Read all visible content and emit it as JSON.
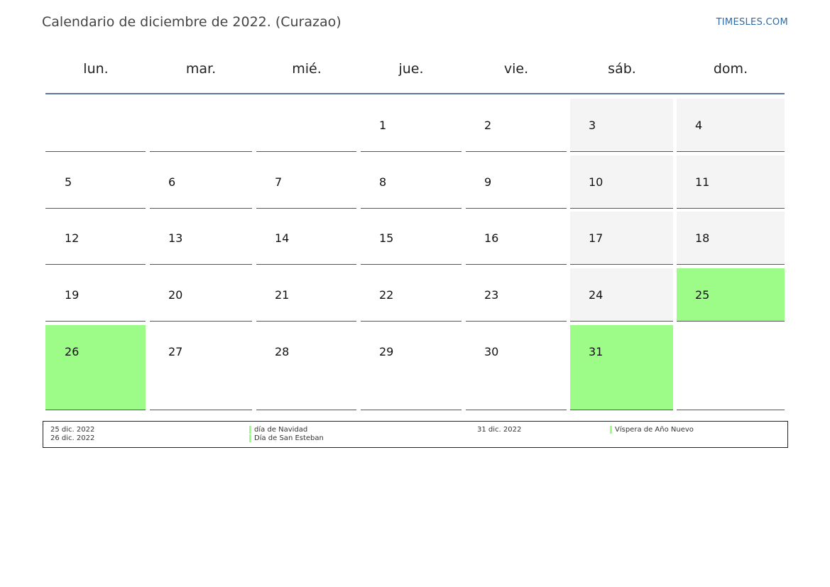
{
  "header": {
    "title": "Calendario de diciembre de 2022. (Curazao)",
    "site": "TIMESLES.COM"
  },
  "weekdays": [
    "lun.",
    "mar.",
    "mié.",
    "jue.",
    "vie.",
    "sáb.",
    "dom."
  ],
  "weeks": [
    [
      "",
      "",
      "",
      "1",
      "2",
      "3",
      "4"
    ],
    [
      "5",
      "6",
      "7",
      "8",
      "9",
      "10",
      "11"
    ],
    [
      "12",
      "13",
      "14",
      "15",
      "16",
      "17",
      "18"
    ],
    [
      "19",
      "20",
      "21",
      "22",
      "23",
      "24",
      "25"
    ],
    [
      "26",
      "27",
      "28",
      "29",
      "30",
      "31",
      ""
    ]
  ],
  "holiday_days": [
    "25",
    "26",
    "31"
  ],
  "colors": {
    "holiday": "#9dfc87",
    "weekend": "#f4f4f4",
    "header_line": "#5b7898",
    "site_link": "#2f6aa3"
  },
  "legend": {
    "left_dates": [
      "25 dic. 2022",
      "26 dic. 2022"
    ],
    "left_names": [
      "día de Navidad",
      "Día de San Esteban"
    ],
    "right_dates": [
      "31 dic. 2022"
    ],
    "right_names": [
      "Víspera de Año Nuevo"
    ]
  }
}
